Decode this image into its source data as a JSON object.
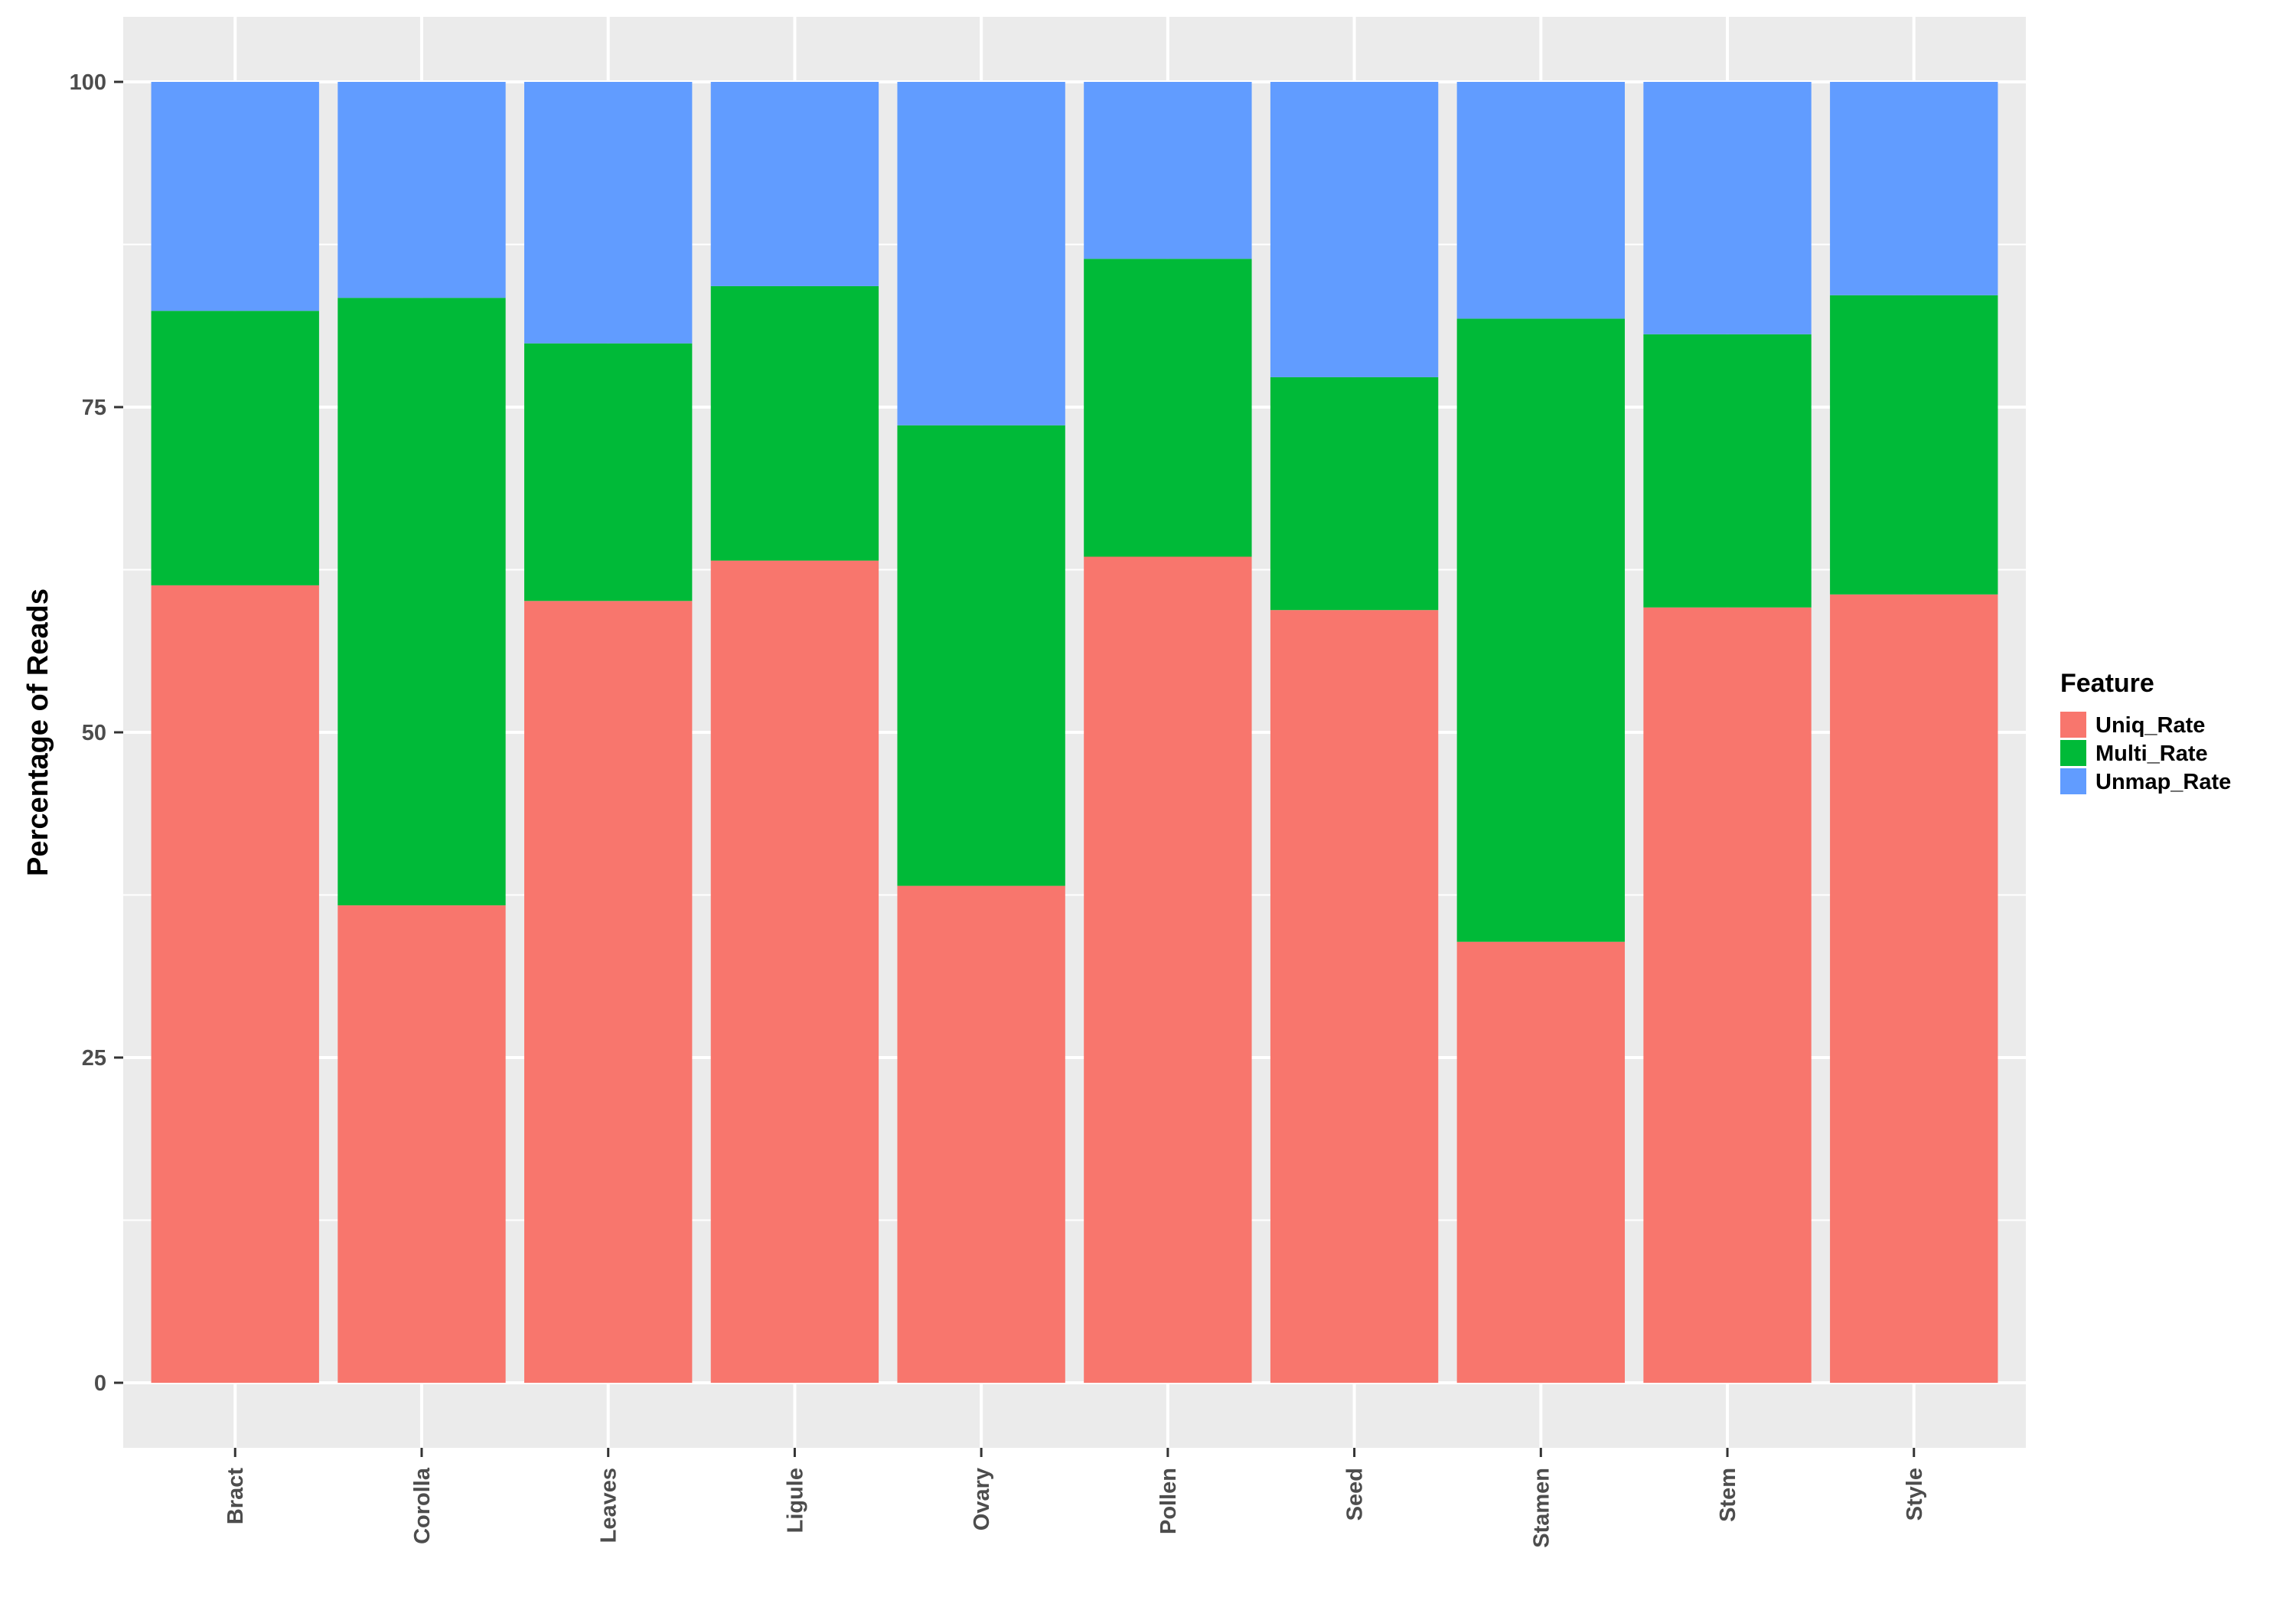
{
  "chart_data": {
    "type": "bar",
    "stacked": true,
    "title": "",
    "xlabel": "",
    "ylabel": "Percentage of Reads",
    "ylim": [
      -5,
      105
    ],
    "yticks": [
      0,
      25,
      50,
      75,
      100
    ],
    "grid": true,
    "legend_title": "Feature",
    "legend_position": "right",
    "categories": [
      "Bract",
      "Corolla",
      "Leaves",
      "Ligule",
      "Ovary",
      "Pollen",
      "Seed",
      "Stamen",
      "Stem",
      "Style"
    ],
    "series": [
      {
        "name": "Uniq_Rate",
        "color": "#F8766D",
        "values": [
          61.3,
          36.7,
          60.1,
          63.2,
          38.2,
          63.5,
          59.4,
          33.9,
          59.6,
          60.6
        ]
      },
      {
        "name": "Multi_Rate",
        "color": "#00BA38",
        "values": [
          21.1,
          46.7,
          19.8,
          21.1,
          35.4,
          22.9,
          17.9,
          47.9,
          21.0,
          23.0
        ]
      },
      {
        "name": "Unmap_Rate",
        "color": "#619CFF",
        "values": [
          17.6,
          16.6,
          20.1,
          15.7,
          26.4,
          13.6,
          22.7,
          18.2,
          19.4,
          16.4
        ]
      }
    ],
    "panel_background": "#EBEBEB",
    "grid_color": "#FFFFFF"
  }
}
